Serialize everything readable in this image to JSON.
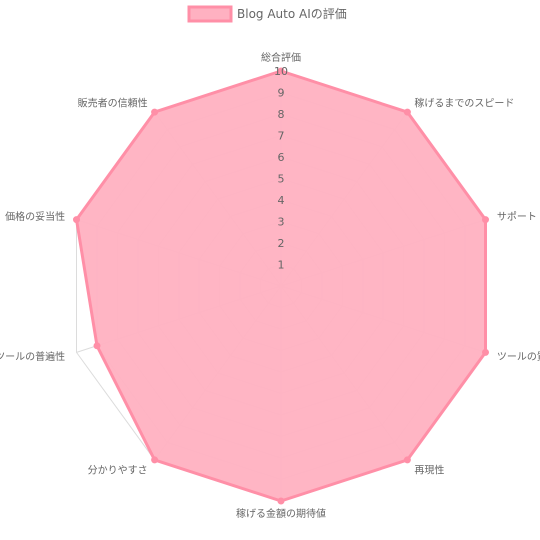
{
  "chart_data": {
    "type": "radar",
    "legend": {
      "label": "Blog Auto AIの評価",
      "position": "top"
    },
    "axes": [
      "総合評価",
      "稼げるまでのスピード",
      "サポート",
      "ツールの質",
      "再現性",
      "稼げる金額の期待値",
      "分かりやすさ",
      "ツールの普遍性",
      "価格の妥当性",
      "販売者の信頼性"
    ],
    "series": [
      {
        "name": "Blog Auto AIの評価",
        "values": [
          10,
          10,
          10,
          10,
          10,
          10,
          10,
          9,
          10,
          10
        ],
        "fill": "#ffb1c1",
        "stroke": "#ff8fa7"
      }
    ],
    "ticks": [
      "1",
      "2",
      "3",
      "4",
      "5",
      "6",
      "7",
      "8",
      "9",
      "10"
    ],
    "range": [
      0,
      10
    ],
    "grid": true
  }
}
